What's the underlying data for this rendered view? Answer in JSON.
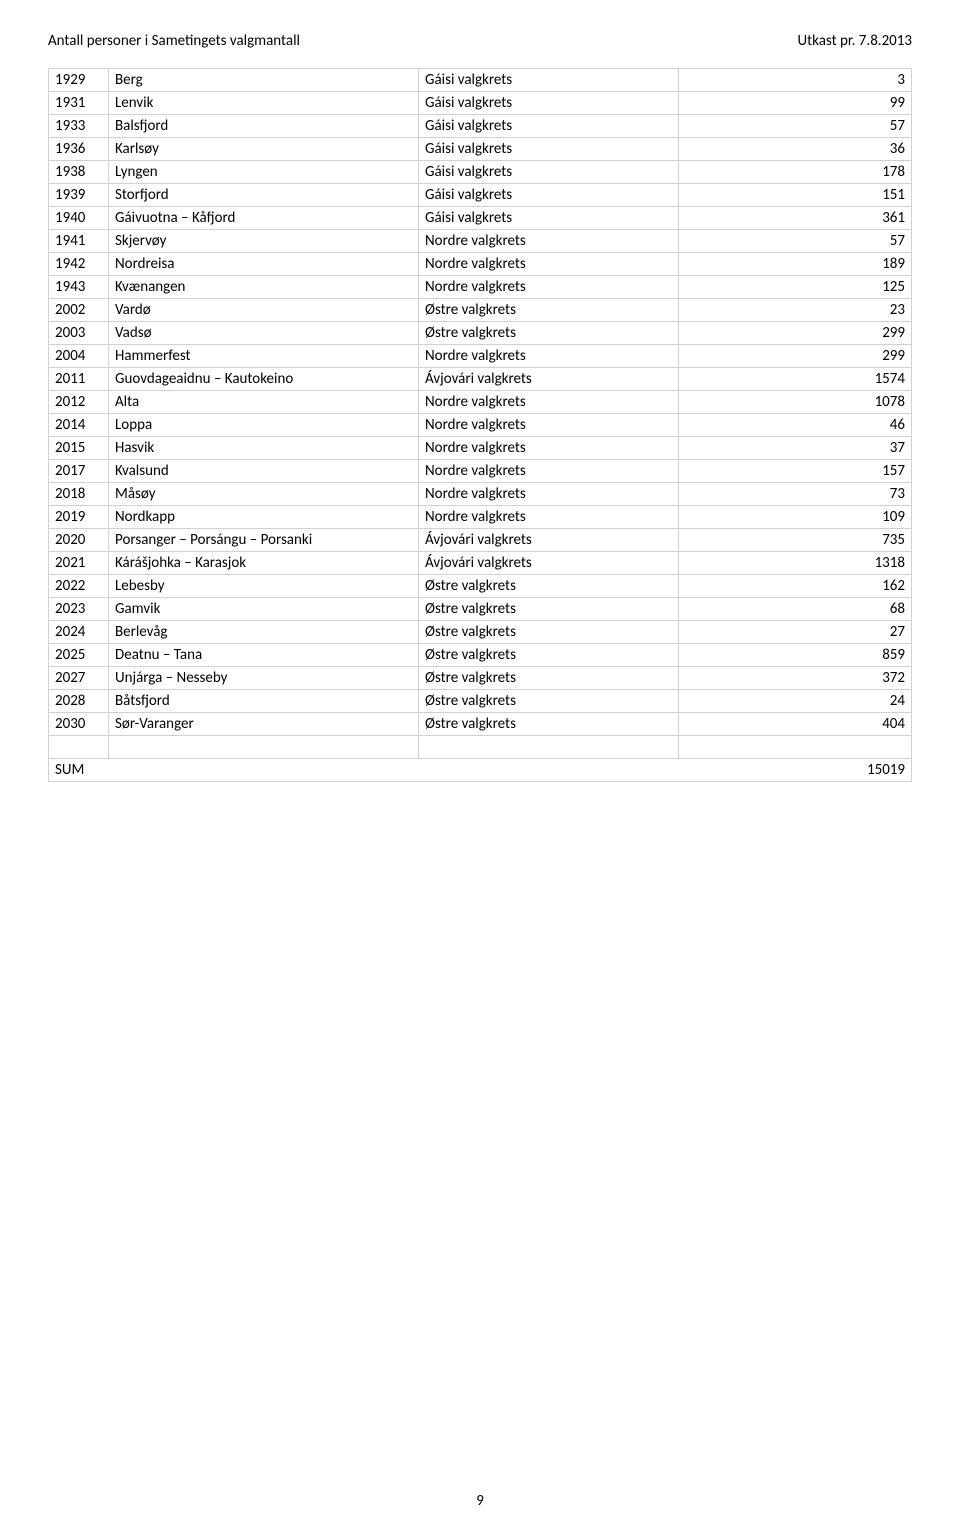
{
  "header": {
    "left": "Antall personer i Sametingets valgmantall",
    "right": "Utkast pr. 7.8.2013"
  },
  "columns": [
    "code",
    "name",
    "district",
    "count"
  ],
  "rows": [
    [
      "1929",
      "Berg",
      "Gáisi valgkrets",
      "3"
    ],
    [
      "1931",
      "Lenvik",
      "Gáisi valgkrets",
      "99"
    ],
    [
      "1933",
      "Balsfjord",
      "Gáisi valgkrets",
      "57"
    ],
    [
      "1936",
      "Karlsøy",
      "Gáisi valgkrets",
      "36"
    ],
    [
      "1938",
      "Lyngen",
      "Gáisi valgkrets",
      "178"
    ],
    [
      "1939",
      "Storfjord",
      "Gáisi valgkrets",
      "151"
    ],
    [
      "1940",
      "Gáivuotna – Kåfjord",
      "Gáisi valgkrets",
      "361"
    ],
    [
      "1941",
      "Skjervøy",
      "Nordre valgkrets",
      "57"
    ],
    [
      "1942",
      "Nordreisa",
      "Nordre valgkrets",
      "189"
    ],
    [
      "1943",
      "Kvænangen",
      "Nordre valgkrets",
      "125"
    ],
    [
      "2002",
      "Vardø",
      "Østre valgkrets",
      "23"
    ],
    [
      "2003",
      "Vadsø",
      "Østre valgkrets",
      "299"
    ],
    [
      "2004",
      "Hammerfest",
      "Nordre valgkrets",
      "299"
    ],
    [
      "2011",
      "Guovdageaidnu – Kautokeino",
      "Ávjovári valgkrets",
      "1574"
    ],
    [
      "2012",
      "Alta",
      "Nordre valgkrets",
      "1078"
    ],
    [
      "2014",
      "Loppa",
      "Nordre valgkrets",
      "46"
    ],
    [
      "2015",
      "Hasvik",
      "Nordre valgkrets",
      "37"
    ],
    [
      "2017",
      "Kvalsund",
      "Nordre valgkrets",
      "157"
    ],
    [
      "2018",
      "Måsøy",
      "Nordre valgkrets",
      "73"
    ],
    [
      "2019",
      "Nordkapp",
      "Nordre valgkrets",
      "109"
    ],
    [
      "2020",
      "Porsanger – Porsángu – Porsanki",
      "Ávjovári valgkrets",
      "735"
    ],
    [
      "2021",
      "Kárášjohka – Karasjok",
      "Ávjovári valgkrets",
      "1318"
    ],
    [
      "2022",
      "Lebesby",
      "Østre valgkrets",
      "162"
    ],
    [
      "2023",
      "Gamvik",
      "Østre valgkrets",
      "68"
    ],
    [
      "2024",
      "Berlevåg",
      "Østre valgkrets",
      "27"
    ],
    [
      "2025",
      "Deatnu – Tana",
      "Østre valgkrets",
      "859"
    ],
    [
      "2027",
      "Unjárga – Nesseby",
      "Østre valgkrets",
      "372"
    ],
    [
      "2028",
      "Båtsfjord",
      "Østre valgkrets",
      "24"
    ],
    [
      "2030",
      "Sør-Varanger",
      "Østre valgkrets",
      "404"
    ]
  ],
  "sum": {
    "label": "SUM",
    "value": "15019"
  },
  "pageNumber": "9"
}
